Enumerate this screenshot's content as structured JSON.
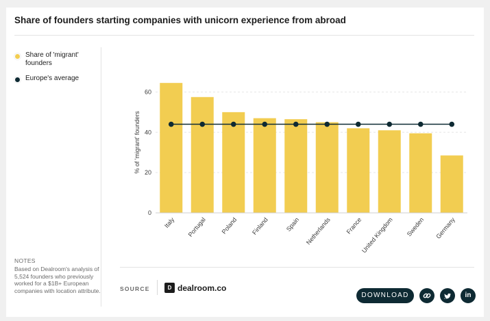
{
  "title": "Share of founders starting companies with unicorn experience from abroad",
  "legend": [
    {
      "label": "Share of 'migrant' founders",
      "color": "#f2cd51"
    },
    {
      "label": "Europe's average",
      "color": "#0e2a33"
    }
  ],
  "notes": {
    "title": "NOTES",
    "text": "Based on Dealroom's analysis of 5,524 founders who previously worked for a $1B+ European companies with location attribute."
  },
  "footer": {
    "source_label": "SOURCE",
    "brand_logo": "D",
    "brand_name": "dealroom.co",
    "download_label": "DOWNLOAD",
    "link_icon": "link-icon",
    "twitter_icon": "twitter-icon",
    "linkedin_icon": "linkedin-icon",
    "linkedin_text": "in"
  },
  "chart_data": {
    "type": "bar",
    "ylabel": "% of 'migrant' founders",
    "ylim": [
      0,
      70
    ],
    "yticks": [
      0,
      20,
      40,
      60
    ],
    "grid": true,
    "categories": [
      "Italy",
      "Portugal",
      "Poland",
      "Finland",
      "Spain",
      "Netherlands",
      "France",
      "United Kingdom",
      "Sweden",
      "Germany"
    ],
    "series": [
      {
        "name": "Share of 'migrant' founders",
        "type": "bar",
        "color": "#f2cd51",
        "values": [
          64.5,
          57.5,
          50.0,
          47.0,
          46.5,
          45.0,
          42.0,
          41.0,
          39.5,
          28.5
        ]
      },
      {
        "name": "Europe's average",
        "type": "line",
        "color": "#0e2a33",
        "values": [
          44,
          44,
          44,
          44,
          44,
          44,
          44,
          44,
          44,
          44
        ]
      }
    ]
  }
}
